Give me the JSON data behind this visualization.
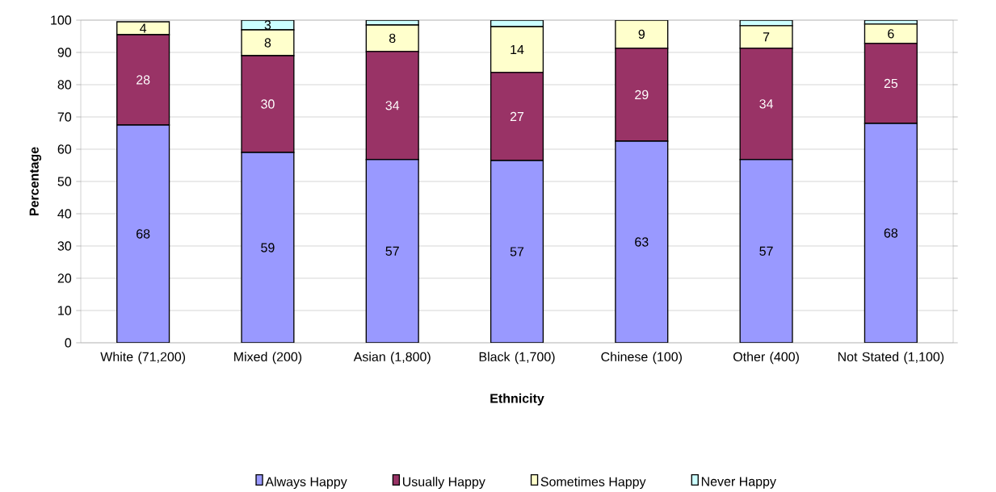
{
  "chart_data": {
    "type": "bar",
    "stacked": true,
    "xlabel": "Ethnicity",
    "ylabel": "Percentage",
    "categories": [
      "White (71,200)",
      "Mixed (200)",
      "Asian (1,800)",
      "Black (1,700)",
      "Chinese (100)",
      "Other (400)",
      "Not Stated (1,100)"
    ],
    "series": [
      {
        "name": "Always Happy",
        "color": "#9999ff",
        "values": [
          67.5,
          59,
          56.8,
          56.5,
          62.5,
          56.8,
          68
        ],
        "value_labels": [
          "68",
          "59",
          "57",
          "57",
          "63",
          "57",
          "68"
        ]
      },
      {
        "name": "Usually Happy",
        "color": "#993366",
        "values": [
          28,
          30,
          33.5,
          27.3,
          28.8,
          34.5,
          24.8
        ],
        "value_labels": [
          "28",
          "30",
          "34",
          "27",
          "29",
          "34",
          "25"
        ]
      },
      {
        "name": "Sometimes Happy",
        "color": "#ffffcc",
        "values": [
          4,
          8,
          8.2,
          14.2,
          8.7,
          7,
          6
        ],
        "value_labels": [
          "4",
          "8",
          "8",
          "14",
          "9",
          "7",
          "6"
        ]
      },
      {
        "name": "Never Happy",
        "color": "#ccffff",
        "values": [
          0,
          3,
          1.5,
          2,
          0,
          1.7,
          1.2
        ],
        "value_labels": [
          null,
          "3",
          null,
          null,
          null,
          null,
          null
        ]
      }
    ],
    "ylim": [
      0,
      100
    ],
    "yticks": [
      0,
      10,
      20,
      30,
      40,
      50,
      60,
      70,
      80,
      90,
      100
    ],
    "grid": "y",
    "legend": "bottom"
  }
}
